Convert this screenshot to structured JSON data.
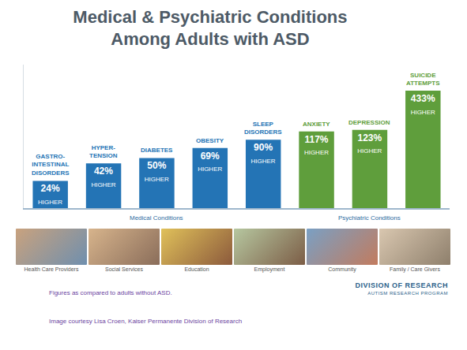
{
  "chart_data": {
    "type": "bar",
    "title": "Medical & Psychiatric Conditions Among Adults with ASD",
    "categories": [
      "GASTRO-INTESTINAL DISORDERS",
      "HYPER-TENSION",
      "DIABETES",
      "OBESITY",
      "SLEEP DISORDERS",
      "ANXIETY",
      "DEPRESSION",
      "SUICIDE ATTEMPTS"
    ],
    "values": [
      24,
      42,
      50,
      69,
      90,
      117,
      123,
      433
    ],
    "value_labels": [
      "24% HIGHER",
      "42% HIGHER",
      "50% HIGHER",
      "69% HIGHER",
      "90% HIGHER",
      "117% HIGHER",
      "123% HIGHER",
      "433% HIGHER"
    ],
    "colors": [
      "#2474b5",
      "#2474b5",
      "#2474b5",
      "#2474b5",
      "#2474b5",
      "#5f9e3c",
      "#5f9e3c",
      "#5f9e3c"
    ],
    "groups": [
      {
        "label": "Medical Conditions",
        "categories": [
          "GASTRO-INTESTINAL DISORDERS",
          "HYPER-TENSION",
          "DIABETES",
          "OBESITY",
          "SLEEP DISORDERS"
        ]
      },
      {
        "label": "Psychiatric Conditions",
        "categories": [
          "ANXIETY",
          "DEPRESSION",
          "SUICIDE ATTEMPTS"
        ]
      }
    ],
    "log": "y",
    "ylim": [
      10,
      1000
    ],
    "grid": false,
    "tick_labels": false,
    "data_labels": true
  },
  "photo_captions": [
    "Health Care Providers",
    "Social Services",
    "Education",
    "Employment",
    "Community",
    "Family / Care Givers"
  ],
  "logo": {
    "title": "DIVISION OF RESEARCH",
    "subtitle": "AUTISM RESEARCH PROGRAM"
  },
  "note": "Figures as compared to adults without ASD.",
  "credit": "Image courtesy Lisa Croen, Kaiser Permanente Division of Research"
}
